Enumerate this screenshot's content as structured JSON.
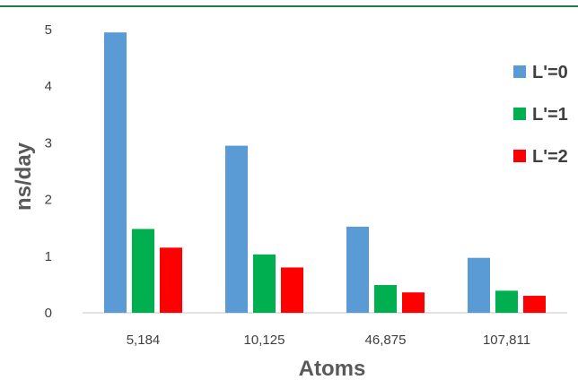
{
  "chart_data": {
    "type": "bar",
    "categories": [
      "5,184",
      "10,125",
      "46,875",
      "107,811"
    ],
    "series": [
      {
        "name": "L'=0",
        "color": "#5b9bd5",
        "values": [
          4.95,
          2.95,
          1.52,
          0.97
        ]
      },
      {
        "name": "L'=1",
        "color": "#00b050",
        "values": [
          1.48,
          1.03,
          0.49,
          0.39
        ]
      },
      {
        "name": "L'=2",
        "color": "#ff0000",
        "values": [
          1.15,
          0.8,
          0.36,
          0.3
        ]
      }
    ],
    "title": "",
    "xlabel": "Atoms",
    "ylabel": "ns/day",
    "ylim": [
      0,
      5
    ],
    "yticks": [
      0,
      1,
      2,
      3,
      4,
      5
    ],
    "grid": false,
    "legend_position": "right",
    "frame_color": "#1e7b4a"
  }
}
